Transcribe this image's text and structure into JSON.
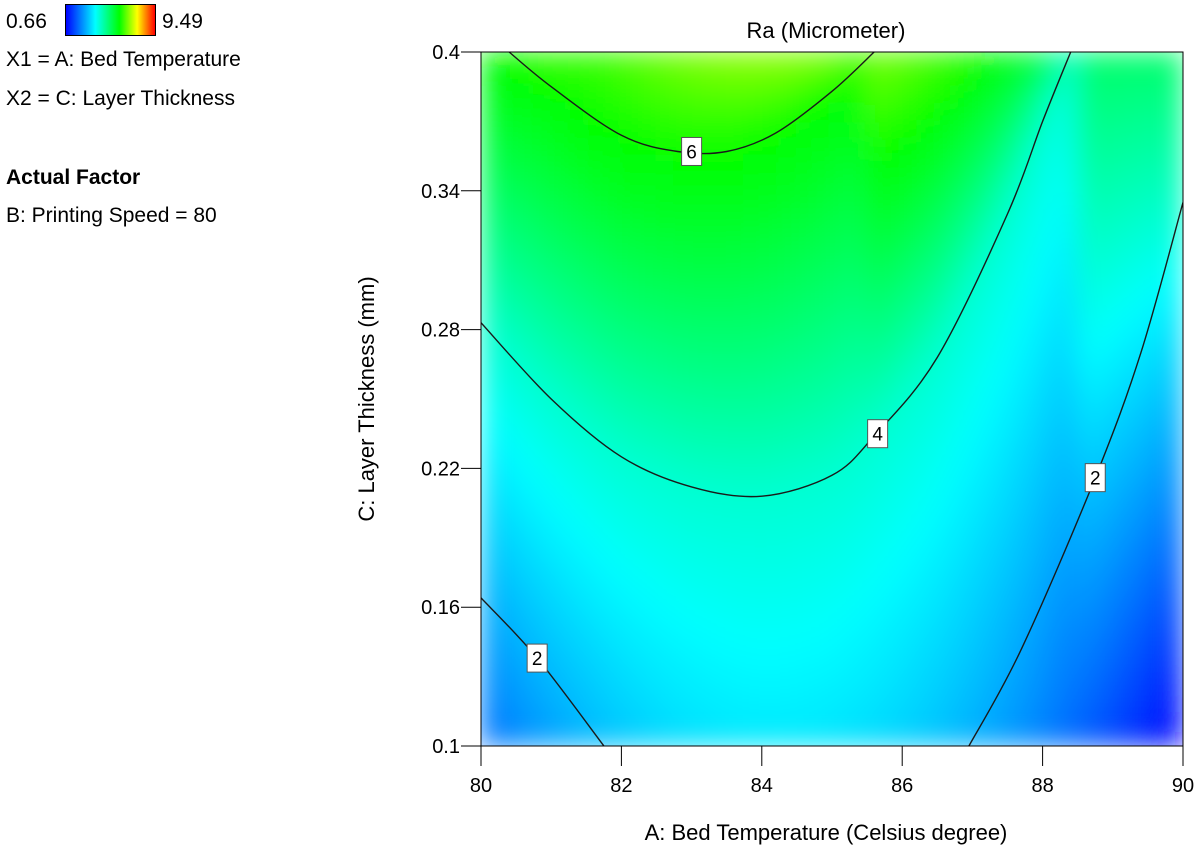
{
  "legend": {
    "scale_min": "0.66",
    "scale_max": "9.49",
    "x1": "X1 = A: Bed Temperature",
    "x2": "X2 = C: Layer Thickness",
    "actual_factor_heading": "Actual Factor",
    "actual_factor": "B: Printing Speed = 80",
    "colors": [
      "#0000ff",
      "#00ffff",
      "#00ff00",
      "#ffff00",
      "#ff0000"
    ]
  },
  "chart_data": {
    "type": "heatmap",
    "title": "Ra (Micrometer)",
    "xlabel": "A: Bed Temperature (Celsius degree)",
    "ylabel": "C: Layer Thickness (mm)",
    "xlim": [
      80,
      90
    ],
    "ylim": [
      0.1,
      0.4
    ],
    "x_ticks": [
      "80",
      "82",
      "84",
      "86",
      "88",
      "90"
    ],
    "y_ticks": [
      "0.1",
      "0.16",
      "0.22",
      "0.28",
      "0.34",
      "0.4"
    ],
    "color_scale": {
      "min": 0.66,
      "max": 9.49
    },
    "contours": [
      {
        "level": 2,
        "label": "2",
        "points": [
          [
            80,
            0.164
          ],
          [
            80.8,
            0.138
          ],
          [
            81.75,
            0.1
          ]
        ]
      },
      {
        "level": 2,
        "label": "2",
        "points": [
          [
            86.95,
            0.1
          ],
          [
            87.7,
            0.142
          ],
          [
            88.75,
            0.216
          ],
          [
            89.4,
            0.27
          ],
          [
            90,
            0.335
          ]
        ]
      },
      {
        "level": 4,
        "label": "4",
        "points": [
          [
            80,
            0.283
          ],
          [
            81,
            0.25
          ],
          [
            82,
            0.225
          ],
          [
            83,
            0.212
          ],
          [
            84,
            0.208
          ],
          [
            85,
            0.217
          ],
          [
            85.6,
            0.234
          ],
          [
            86.5,
            0.268
          ],
          [
            87.5,
            0.33
          ],
          [
            88,
            0.37
          ],
          [
            88.4,
            0.4
          ]
        ]
      },
      {
        "level": 6,
        "label": "6",
        "points": [
          [
            80.4,
            0.4
          ],
          [
            81,
            0.385
          ],
          [
            82,
            0.364
          ],
          [
            82.8,
            0.357
          ],
          [
            83.5,
            0.357
          ],
          [
            84.2,
            0.365
          ],
          [
            85,
            0.383
          ],
          [
            85.6,
            0.4
          ]
        ]
      }
    ],
    "contour_labels": [
      {
        "label": "6",
        "x": 83.0,
        "y": 0.357
      },
      {
        "label": "4",
        "x": 85.65,
        "y": 0.235
      },
      {
        "label": "2",
        "x": 88.75,
        "y": 0.216
      },
      {
        "label": "2",
        "x": 80.8,
        "y": 0.138
      }
    ]
  }
}
